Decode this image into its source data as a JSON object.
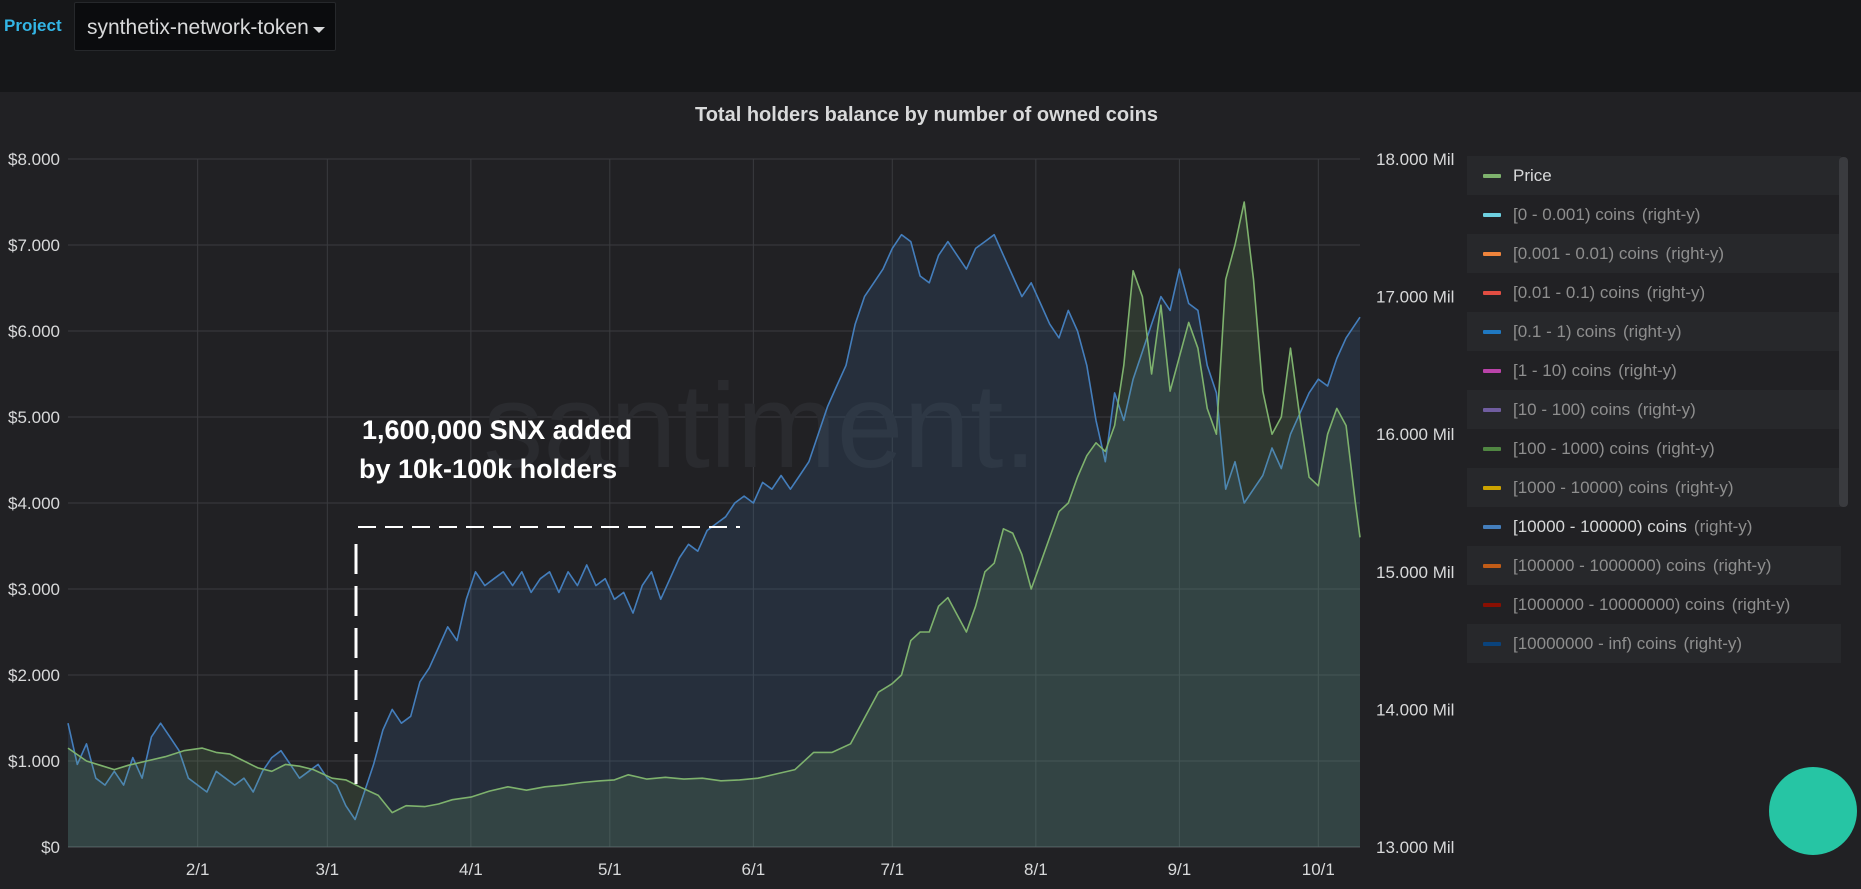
{
  "header": {
    "project_label": "Project",
    "project_value": "synthetix-network-token"
  },
  "annotation": {
    "line1": "1,600,000 SNX added",
    "line2": "by 10k-100k holders"
  },
  "watermark": "santiment.",
  "colors": {
    "price": "#7eb26d",
    "holders": "#447ebc",
    "grid": "#3a3b3f"
  },
  "legend": [
    {
      "label": "Price",
      "axis": "",
      "color": "#7eb26d",
      "highlight": true
    },
    {
      "label": "[0 - 0.001) coins",
      "axis": "(right-y)",
      "color": "#6ed0e0",
      "highlight": false
    },
    {
      "label": "[0.001 - 0.01) coins",
      "axis": "(right-y)",
      "color": "#ef843c",
      "highlight": false
    },
    {
      "label": "[0.01 - 0.1) coins",
      "axis": "(right-y)",
      "color": "#e24d42",
      "highlight": false
    },
    {
      "label": "[0.1 - 1) coins",
      "axis": "(right-y)",
      "color": "#1f78c1",
      "highlight": false
    },
    {
      "label": "[1 - 10) coins",
      "axis": "(right-y)",
      "color": "#ba43a9",
      "highlight": false
    },
    {
      "label": "[10 - 100) coins",
      "axis": "(right-y)",
      "color": "#705da0",
      "highlight": false
    },
    {
      "label": "[100 - 1000) coins",
      "axis": "(right-y)",
      "color": "#508642",
      "highlight": false
    },
    {
      "label": "[1000 - 10000) coins",
      "axis": "(right-y)",
      "color": "#cca300",
      "highlight": false
    },
    {
      "label": "[10000 - 100000) coins",
      "axis": "(right-y)",
      "color": "#447ebc",
      "highlight": true
    },
    {
      "label": "[100000 - 1000000) coins",
      "axis": "(right-y)",
      "color": "#c15c17",
      "highlight": false
    },
    {
      "label": "[1000000 - 10000000) coins",
      "axis": "(right-y)",
      "color": "#890f02",
      "highlight": false
    },
    {
      "label": "[10000000 - inf) coins",
      "axis": "(right-y)",
      "color": "#0a437c",
      "highlight": false
    }
  ],
  "chart_data": {
    "type": "line",
    "title": "Total holders balance by number of owned coins",
    "x_tick_labels": [
      "2/1",
      "3/1",
      "4/1",
      "5/1",
      "6/1",
      "7/1",
      "8/1",
      "9/1",
      "10/1"
    ],
    "x_tick_days": [
      21,
      49,
      80,
      110,
      141,
      171,
      202,
      233,
      263
    ],
    "x_range_days": [
      -7,
      272
    ],
    "y_left": {
      "ticks": [
        "$0",
        "$1.000",
        "$2.000",
        "$3.000",
        "$4.000",
        "$5.000",
        "$6.000",
        "$7.000",
        "$8.000"
      ],
      "range": [
        0,
        8000
      ]
    },
    "y_right": {
      "ticks": [
        "13.000 Mil",
        "14.000 Mil",
        "15.000 Mil",
        "16.000 Mil",
        "17.000 Mil",
        "18.000 Mil"
      ],
      "range": [
        13000000,
        18000000
      ]
    },
    "series": [
      {
        "name": "Price",
        "axis": "left",
        "points": [
          [
            -7,
            1150
          ],
          [
            -3,
            1000
          ],
          [
            0,
            950
          ],
          [
            3,
            900
          ],
          [
            6,
            950
          ],
          [
            10,
            1000
          ],
          [
            14,
            1050
          ],
          [
            18,
            1120
          ],
          [
            22,
            1150
          ],
          [
            25,
            1100
          ],
          [
            28,
            1080
          ],
          [
            31,
            1000
          ],
          [
            34,
            920
          ],
          [
            37,
            880
          ],
          [
            40,
            960
          ],
          [
            43,
            940
          ],
          [
            46,
            900
          ],
          [
            50,
            800
          ],
          [
            53,
            780
          ],
          [
            56,
            700
          ],
          [
            60,
            600
          ],
          [
            63,
            400
          ],
          [
            66,
            480
          ],
          [
            70,
            470
          ],
          [
            73,
            500
          ],
          [
            76,
            550
          ],
          [
            80,
            580
          ],
          [
            84,
            650
          ],
          [
            88,
            700
          ],
          [
            92,
            660
          ],
          [
            96,
            700
          ],
          [
            100,
            720
          ],
          [
            104,
            750
          ],
          [
            108,
            770
          ],
          [
            111,
            780
          ],
          [
            114,
            840
          ],
          [
            118,
            790
          ],
          [
            122,
            810
          ],
          [
            126,
            790
          ],
          [
            130,
            800
          ],
          [
            134,
            770
          ],
          [
            138,
            780
          ],
          [
            142,
            800
          ],
          [
            146,
            850
          ],
          [
            150,
            900
          ],
          [
            154,
            1100
          ],
          [
            158,
            1100
          ],
          [
            162,
            1200
          ],
          [
            165,
            1500
          ],
          [
            168,
            1800
          ],
          [
            171,
            1900
          ],
          [
            173,
            2000
          ],
          [
            175,
            2400
          ],
          [
            177,
            2500
          ],
          [
            179,
            2500
          ],
          [
            181,
            2800
          ],
          [
            183,
            2900
          ],
          [
            185,
            2700
          ],
          [
            187,
            2500
          ],
          [
            189,
            2800
          ],
          [
            191,
            3200
          ],
          [
            193,
            3300
          ],
          [
            195,
            3700
          ],
          [
            197,
            3650
          ],
          [
            199,
            3400
          ],
          [
            201,
            3000
          ],
          [
            203,
            3300
          ],
          [
            205,
            3600
          ],
          [
            207,
            3900
          ],
          [
            209,
            4000
          ],
          [
            211,
            4300
          ],
          [
            213,
            4550
          ],
          [
            215,
            4700
          ],
          [
            217,
            4600
          ],
          [
            219,
            4900
          ],
          [
            221,
            5600
          ],
          [
            223,
            6700
          ],
          [
            225,
            6400
          ],
          [
            227,
            5500
          ],
          [
            229,
            6300
          ],
          [
            231,
            5300
          ],
          [
            233,
            5700
          ],
          [
            235,
            6100
          ],
          [
            237,
            5800
          ],
          [
            239,
            5100
          ],
          [
            241,
            4800
          ],
          [
            243,
            6600
          ],
          [
            245,
            7000
          ],
          [
            247,
            7500
          ],
          [
            249,
            6600
          ],
          [
            251,
            5300
          ],
          [
            253,
            4800
          ],
          [
            255,
            5000
          ],
          [
            257,
            5800
          ],
          [
            259,
            5000
          ],
          [
            261,
            4300
          ],
          [
            263,
            4200
          ],
          [
            265,
            4800
          ],
          [
            267,
            5100
          ],
          [
            269,
            4900
          ],
          [
            271,
            4000
          ],
          [
            272,
            3600
          ]
        ]
      },
      {
        "name": "[10000 - 100000) coins",
        "axis": "right",
        "points": [
          [
            -7,
            13900
          ],
          [
            -5,
            13600
          ],
          [
            -3,
            13750
          ],
          [
            -1,
            13500
          ],
          [
            1,
            13450
          ],
          [
            3,
            13550
          ],
          [
            5,
            13450
          ],
          [
            7,
            13650
          ],
          [
            9,
            13500
          ],
          [
            11,
            13800
          ],
          [
            13,
            13900
          ],
          [
            15,
            13800
          ],
          [
            17,
            13700
          ],
          [
            19,
            13500
          ],
          [
            21,
            13450
          ],
          [
            23,
            13400
          ],
          [
            25,
            13550
          ],
          [
            27,
            13500
          ],
          [
            29,
            13450
          ],
          [
            31,
            13500
          ],
          [
            33,
            13400
          ],
          [
            35,
            13550
          ],
          [
            37,
            13650
          ],
          [
            39,
            13700
          ],
          [
            41,
            13600
          ],
          [
            43,
            13500
          ],
          [
            45,
            13550
          ],
          [
            47,
            13600
          ],
          [
            49,
            13500
          ],
          [
            51,
            13450
          ],
          [
            53,
            13300
          ],
          [
            55,
            13200
          ],
          [
            57,
            13400
          ],
          [
            59,
            13600
          ],
          [
            61,
            13850
          ],
          [
            63,
            14000
          ],
          [
            65,
            13900
          ],
          [
            67,
            13950
          ],
          [
            69,
            14200
          ],
          [
            71,
            14300
          ],
          [
            73,
            14450
          ],
          [
            75,
            14600
          ],
          [
            77,
            14500
          ],
          [
            79,
            14800
          ],
          [
            81,
            15000
          ],
          [
            83,
            14900
          ],
          [
            85,
            14950
          ],
          [
            87,
            15000
          ],
          [
            89,
            14900
          ],
          [
            91,
            15000
          ],
          [
            93,
            14850
          ],
          [
            95,
            14950
          ],
          [
            97,
            15000
          ],
          [
            99,
            14850
          ],
          [
            101,
            15000
          ],
          [
            103,
            14900
          ],
          [
            105,
            15050
          ],
          [
            107,
            14900
          ],
          [
            109,
            14950
          ],
          [
            111,
            14800
          ],
          [
            113,
            14850
          ],
          [
            115,
            14700
          ],
          [
            117,
            14900
          ],
          [
            119,
            15000
          ],
          [
            121,
            14800
          ],
          [
            123,
            14950
          ],
          [
            125,
            15100
          ],
          [
            127,
            15200
          ],
          [
            129,
            15150
          ],
          [
            131,
            15300
          ],
          [
            133,
            15350
          ],
          [
            135,
            15400
          ],
          [
            137,
            15500
          ],
          [
            139,
            15550
          ],
          [
            141,
            15500
          ],
          [
            143,
            15650
          ],
          [
            145,
            15600
          ],
          [
            147,
            15700
          ],
          [
            149,
            15600
          ],
          [
            151,
            15700
          ],
          [
            153,
            15800
          ],
          [
            155,
            16000
          ],
          [
            157,
            16200
          ],
          [
            159,
            16350
          ],
          [
            161,
            16500
          ],
          [
            163,
            16800
          ],
          [
            165,
            17000
          ],
          [
            167,
            17100
          ],
          [
            169,
            17200
          ],
          [
            171,
            17350
          ],
          [
            173,
            17450
          ],
          [
            175,
            17400
          ],
          [
            177,
            17150
          ],
          [
            179,
            17100
          ],
          [
            181,
            17300
          ],
          [
            183,
            17400
          ],
          [
            185,
            17300
          ],
          [
            187,
            17200
          ],
          [
            189,
            17350
          ],
          [
            191,
            17400
          ],
          [
            193,
            17450
          ],
          [
            195,
            17300
          ],
          [
            197,
            17150
          ],
          [
            199,
            17000
          ],
          [
            201,
            17100
          ],
          [
            203,
            16950
          ],
          [
            205,
            16800
          ],
          [
            207,
            16700
          ],
          [
            209,
            16900
          ],
          [
            211,
            16750
          ],
          [
            213,
            16500
          ],
          [
            215,
            16100
          ],
          [
            217,
            15800
          ],
          [
            219,
            16300
          ],
          [
            221,
            16100
          ],
          [
            223,
            16400
          ],
          [
            225,
            16600
          ],
          [
            227,
            16800
          ],
          [
            229,
            17000
          ],
          [
            231,
            16900
          ],
          [
            233,
            17200
          ],
          [
            235,
            16950
          ],
          [
            237,
            16900
          ],
          [
            239,
            16500
          ],
          [
            241,
            16300
          ],
          [
            243,
            15600
          ],
          [
            245,
            15800
          ],
          [
            247,
            15500
          ],
          [
            249,
            15600
          ],
          [
            251,
            15700
          ],
          [
            253,
            15900
          ],
          [
            255,
            15750
          ],
          [
            257,
            16000
          ],
          [
            259,
            16150
          ],
          [
            261,
            16300
          ],
          [
            263,
            16400
          ],
          [
            265,
            16350
          ],
          [
            267,
            16550
          ],
          [
            269,
            16700
          ],
          [
            272,
            16850
          ]
        ]
      }
    ]
  }
}
